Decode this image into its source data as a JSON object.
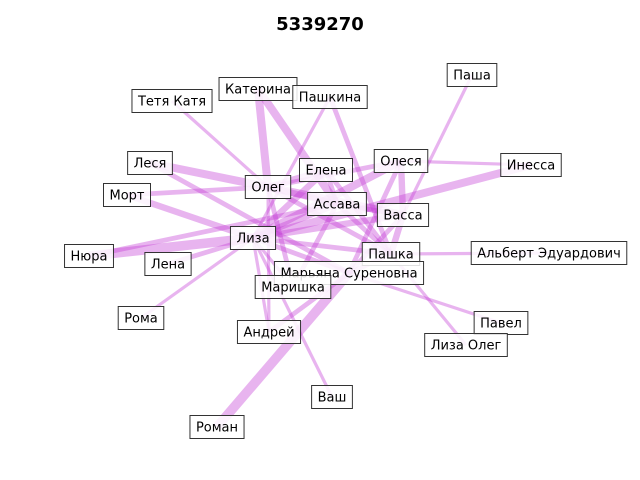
{
  "title": "5339270",
  "colors": {
    "edge": "#c23bd4",
    "node_border": "#333333",
    "node_fill": "#ffffff"
  },
  "nodes": [
    {
      "id": "tetya_katya",
      "label": "Тетя Катя"
    },
    {
      "id": "katerina",
      "label": "Катерина"
    },
    {
      "id": "pashkina",
      "label": "Пашкина"
    },
    {
      "id": "pasha",
      "label": "Паша"
    },
    {
      "id": "lesya",
      "label": "Леся"
    },
    {
      "id": "mort",
      "label": "Морт"
    },
    {
      "id": "oleg",
      "label": "Олег"
    },
    {
      "id": "elena",
      "label": "Елена"
    },
    {
      "id": "olesya",
      "label": "Олеся"
    },
    {
      "id": "inessa",
      "label": "Инесса"
    },
    {
      "id": "assava",
      "label": "Ассава"
    },
    {
      "id": "vassa",
      "label": "Васса"
    },
    {
      "id": "nyura",
      "label": "Нюра"
    },
    {
      "id": "lena",
      "label": "Лена"
    },
    {
      "id": "liza",
      "label": "Лиза"
    },
    {
      "id": "pashka",
      "label": "Пашка"
    },
    {
      "id": "albert",
      "label": "Альберт Эдуардович"
    },
    {
      "id": "maryana",
      "label": "Марьяна Суреновна"
    },
    {
      "id": "marishka",
      "label": "Маришка"
    },
    {
      "id": "roma",
      "label": "Рома"
    },
    {
      "id": "andrey",
      "label": "Андрей"
    },
    {
      "id": "pavel",
      "label": "Павел"
    },
    {
      "id": "liza_oleg",
      "label": "Лиза Олег"
    },
    {
      "id": "vash",
      "label": "Ваш"
    },
    {
      "id": "roman",
      "label": "Роман"
    }
  ],
  "edges": [
    {
      "source": "tetya_katya",
      "target": "oleg",
      "weight": 2
    },
    {
      "source": "katerina",
      "target": "oleg",
      "weight": 5
    },
    {
      "source": "katerina",
      "target": "assava",
      "weight": 5
    },
    {
      "source": "pashkina",
      "target": "liza",
      "weight": 2
    },
    {
      "source": "pashkina",
      "target": "pashka",
      "weight": 3
    },
    {
      "source": "pasha",
      "target": "vassa",
      "weight": 2
    },
    {
      "source": "lesya",
      "target": "oleg",
      "weight": 5
    },
    {
      "source": "lesya",
      "target": "maryana",
      "weight": 3
    },
    {
      "source": "mort",
      "target": "oleg",
      "weight": 3
    },
    {
      "source": "mort",
      "target": "liza",
      "weight": 4
    },
    {
      "source": "oleg",
      "target": "elena",
      "weight": 4
    },
    {
      "source": "oleg",
      "target": "assava",
      "weight": 4
    },
    {
      "source": "oleg",
      "target": "vassa",
      "weight": 5
    },
    {
      "source": "oleg",
      "target": "olesya",
      "weight": 3
    },
    {
      "source": "oleg",
      "target": "pashka",
      "weight": 3
    },
    {
      "source": "oleg",
      "target": "marishka",
      "weight": 3
    },
    {
      "source": "elena",
      "target": "liza",
      "weight": 4
    },
    {
      "source": "elena",
      "target": "assava",
      "weight": 3
    },
    {
      "source": "elena",
      "target": "pashka",
      "weight": 3
    },
    {
      "source": "olesya",
      "target": "liza",
      "weight": 5
    },
    {
      "source": "olesya",
      "target": "inessa",
      "weight": 2
    },
    {
      "source": "olesya",
      "target": "vassa",
      "weight": 4
    },
    {
      "source": "olesya",
      "target": "maryana",
      "weight": 3
    },
    {
      "source": "inessa",
      "target": "liza",
      "weight": 5
    },
    {
      "source": "assava",
      "target": "liza",
      "weight": 4
    },
    {
      "source": "assava",
      "target": "vassa",
      "weight": 3
    },
    {
      "source": "assava",
      "target": "pashka",
      "weight": 3
    },
    {
      "source": "vassa",
      "target": "liza",
      "weight": 4
    },
    {
      "source": "vassa",
      "target": "pashka",
      "weight": 4
    },
    {
      "source": "vassa",
      "target": "maryana",
      "weight": 3
    },
    {
      "source": "nyura",
      "target": "liza",
      "weight": 6
    },
    {
      "source": "nyura",
      "target": "assava",
      "weight": 3
    },
    {
      "source": "lena",
      "target": "liza",
      "weight": 3
    },
    {
      "source": "liza",
      "target": "pashka",
      "weight": 3
    },
    {
      "source": "liza",
      "target": "maryana",
      "weight": 3
    },
    {
      "source": "liza",
      "target": "marishka",
      "weight": 2
    },
    {
      "source": "liza",
      "target": "roma",
      "weight": 2
    },
    {
      "source": "liza",
      "target": "andrey",
      "weight": 2
    },
    {
      "source": "liza",
      "target": "vash",
      "weight": 2
    },
    {
      "source": "oleg",
      "target": "andrey",
      "weight": 2
    },
    {
      "source": "pashka",
      "target": "albert",
      "weight": 2
    },
    {
      "source": "pashka",
      "target": "liza_oleg",
      "weight": 2
    },
    {
      "source": "pashka",
      "target": "maryana",
      "weight": 3
    },
    {
      "source": "maryana",
      "target": "pavel",
      "weight": 2
    },
    {
      "source": "maryana",
      "target": "roman",
      "weight": 6
    },
    {
      "source": "maryana",
      "target": "andrey",
      "weight": 3
    },
    {
      "source": "marishka",
      "target": "assava",
      "weight": 3
    }
  ]
}
